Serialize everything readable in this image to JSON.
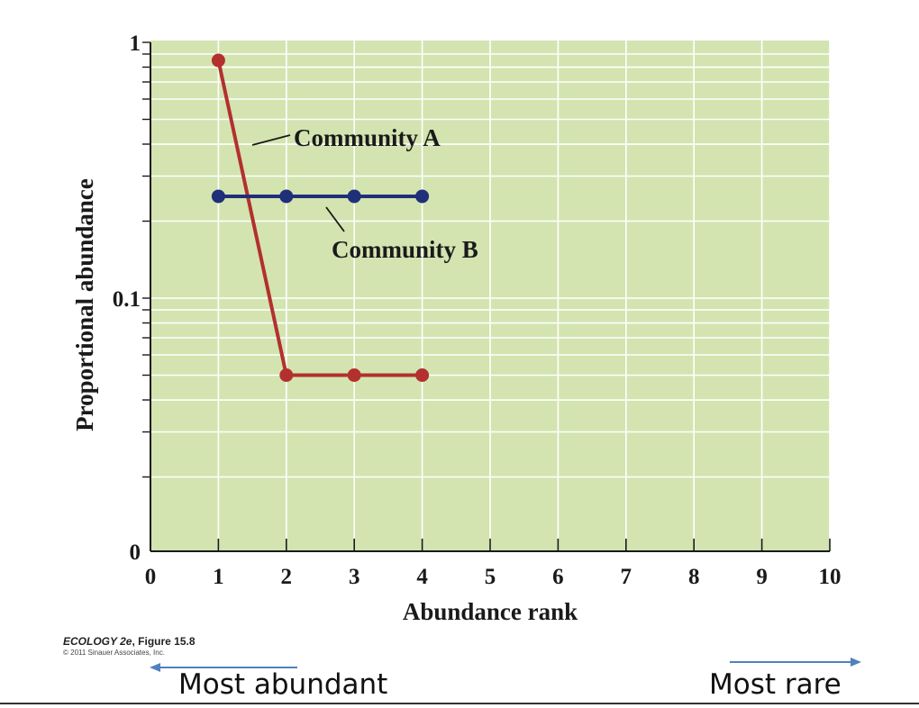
{
  "chart_data": {
    "type": "line",
    "title": "",
    "xlabel": "Abundance rank",
    "ylabel": "Proportional abundance",
    "x_ticks": [
      "0",
      "1",
      "2",
      "3",
      "4",
      "5",
      "6",
      "7",
      "8",
      "9",
      "10"
    ],
    "xlim": [
      0,
      10
    ],
    "y_scale": "log",
    "y_ticks": [
      "1",
      "0.1",
      "0"
    ],
    "grid": true,
    "series": [
      {
        "name": "Community A",
        "x": [
          1,
          2,
          3,
          4
        ],
        "y": [
          0.85,
          0.05,
          0.05,
          0.05
        ],
        "color": "#b3302f"
      },
      {
        "name": "Community B",
        "x": [
          1,
          2,
          3,
          4
        ],
        "y": [
          0.25,
          0.25,
          0.25,
          0.25
        ],
        "color": "#1f2f7a"
      }
    ],
    "background_color": "#d3e4b0"
  },
  "credit": {
    "title": "ECOLOGY 2e",
    "figure": ", Figure 15.8",
    "copyright": "© 2011 Sinauer Associates, Inc."
  },
  "notes": {
    "left": "Most abundant",
    "right": "Most rare",
    "arrow_color": "#4f81bd"
  }
}
